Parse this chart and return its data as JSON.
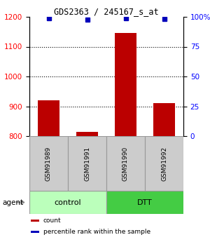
{
  "title": "GDS2363 / 245167_s_at",
  "samples": [
    "GSM91989",
    "GSM91991",
    "GSM91990",
    "GSM91992"
  ],
  "counts": [
    920,
    813,
    1145,
    910
  ],
  "percentiles": [
    98.8,
    97.8,
    99.0,
    98.5
  ],
  "groups": [
    {
      "label": "control",
      "indices": [
        0,
        1
      ],
      "color": "#bbffbb"
    },
    {
      "label": "DTT",
      "indices": [
        2,
        3
      ],
      "color": "#44cc44"
    }
  ],
  "bar_color": "#bb0000",
  "dot_color": "#0000bb",
  "ylim_left": [
    800,
    1200
  ],
  "ylim_right": [
    0,
    100
  ],
  "yticks_left": [
    800,
    900,
    1000,
    1100,
    1200
  ],
  "yticks_right": [
    0,
    25,
    50,
    75,
    100
  ],
  "grid_ticks": [
    900,
    1000,
    1100
  ],
  "bar_width": 0.55,
  "agent_label": "agent",
  "legend": [
    {
      "color": "#bb0000",
      "label": "count"
    },
    {
      "color": "#0000bb",
      "label": "percentile rank within the sample"
    }
  ],
  "fig_width": 3.0,
  "fig_height": 3.45,
  "dpi": 100
}
